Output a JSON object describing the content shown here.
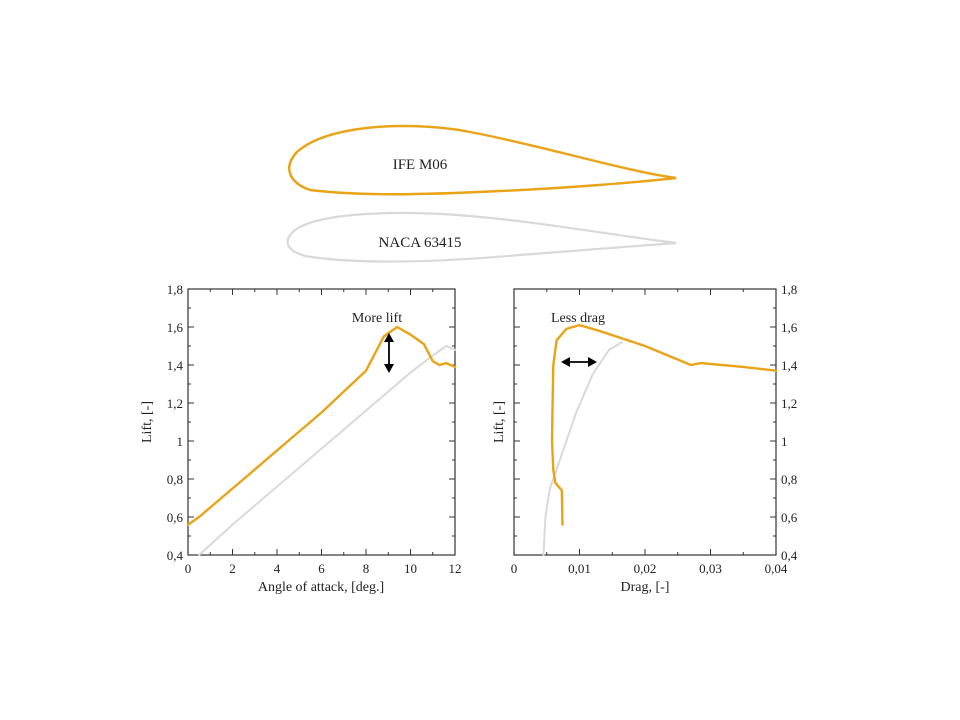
{
  "colors": {
    "new_profile": "#E8A317",
    "reference_profile": "#D9D9D9",
    "axis": "#333333",
    "arrow": "#000000"
  },
  "airfoils": [
    {
      "label": "IFE M06"
    },
    {
      "label": "NACA 63415"
    }
  ],
  "chart_data": [
    {
      "type": "line",
      "xlabel": "Angle of attack, [deg.]",
      "ylabel": "Lift, [-]",
      "xlim": [
        0,
        12
      ],
      "ylim": [
        0.4,
        1.8
      ],
      "x_ticks": [
        "0",
        "2",
        "4",
        "6",
        "8",
        "10",
        "12"
      ],
      "y_ticks": [
        "0,4",
        "0,6",
        "0,8",
        "1",
        "1,2",
        "1,4",
        "1,6",
        "1,8"
      ],
      "grid": false,
      "annotation": "More lift",
      "series": [
        {
          "name": "IFE M06",
          "color": "#E8A317",
          "points": [
            [
              0,
              0.56
            ],
            [
              0.5,
              0.6
            ],
            [
              2,
              0.75
            ],
            [
              4,
              0.95
            ],
            [
              6,
              1.15
            ],
            [
              8,
              1.37
            ],
            [
              8.8,
              1.55
            ],
            [
              9.4,
              1.6
            ],
            [
              10,
              1.56
            ],
            [
              10.6,
              1.51
            ],
            [
              11.0,
              1.42
            ],
            [
              11.3,
              1.4
            ],
            [
              11.6,
              1.41
            ],
            [
              12,
              1.39
            ]
          ]
        },
        {
          "name": "NACA 63415",
          "color": "#D9D9D9",
          "points": [
            [
              0.5,
              0.4
            ],
            [
              2,
              0.56
            ],
            [
              4,
              0.76
            ],
            [
              6,
              0.96
            ],
            [
              8,
              1.16
            ],
            [
              10,
              1.36
            ],
            [
              11,
              1.45
            ],
            [
              11.6,
              1.5
            ],
            [
              12,
              1.48
            ]
          ]
        }
      ]
    },
    {
      "type": "line",
      "xlabel": "Drag, [-]",
      "ylabel": "Lift, [-]",
      "xlim": [
        0,
        0.04
      ],
      "ylim": [
        0.4,
        1.8
      ],
      "x_ticks": [
        "0",
        "0,01",
        "0,02",
        "0,03",
        "0,04"
      ],
      "y_ticks": [
        "0,4",
        "0,6",
        "0,8",
        "1",
        "1,2",
        "1,4",
        "1,6",
        "1,8"
      ],
      "grid": false,
      "annotation": "Less drag",
      "series": [
        {
          "name": "IFE M06",
          "color": "#E8A317",
          "points": [
            [
              0.0074,
              0.56
            ],
            [
              0.0073,
              0.74
            ],
            [
              0.0063,
              0.78
            ],
            [
              0.006,
              0.85
            ],
            [
              0.0058,
              1.0
            ],
            [
              0.0059,
              1.2
            ],
            [
              0.006,
              1.4
            ],
            [
              0.0065,
              1.53
            ],
            [
              0.008,
              1.59
            ],
            [
              0.01,
              1.61
            ],
            [
              0.013,
              1.58
            ],
            [
              0.02,
              1.5
            ],
            [
              0.027,
              1.4
            ],
            [
              0.0285,
              1.41
            ],
            [
              0.035,
              1.39
            ],
            [
              0.04,
              1.37
            ]
          ]
        },
        {
          "name": "NACA 63415",
          "color": "#D9D9D9",
          "points": [
            [
              0.0045,
              0.4
            ],
            [
              0.0048,
              0.6
            ],
            [
              0.0055,
              0.75
            ],
            [
              0.0075,
              0.95
            ],
            [
              0.0095,
              1.15
            ],
            [
              0.012,
              1.35
            ],
            [
              0.0145,
              1.48
            ],
            [
              0.0165,
              1.52
            ]
          ]
        }
      ]
    }
  ]
}
